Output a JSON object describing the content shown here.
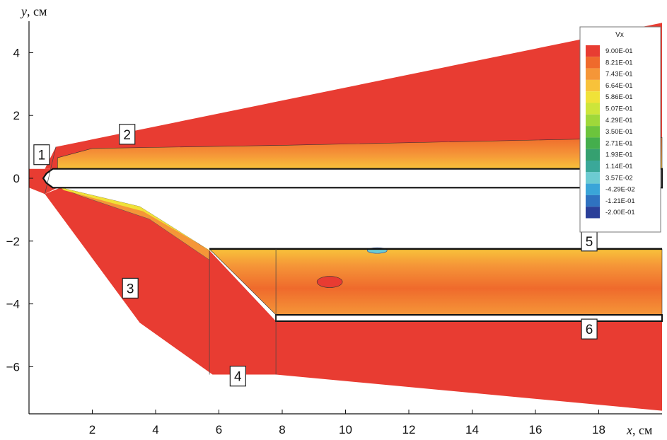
{
  "chart_data": {
    "type": "heatmap",
    "xlabel": "x, см",
    "ylabel": "y, см",
    "xlim": [
      0,
      20
    ],
    "ylim": [
      -7.5,
      5
    ],
    "xticks": [
      2,
      4,
      6,
      8,
      10,
      12,
      14,
      16,
      18
    ],
    "yticks": [
      4,
      2,
      0,
      -2,
      -4,
      -6
    ],
    "ytick_labels": [
      "4",
      "2",
      "0",
      "−2",
      "−4",
      "−6"
    ],
    "colorbar": {
      "title": "Vx",
      "levels": [
        "9.00E-01",
        "8.21E-01",
        "7.43E-01",
        "6.64E-01",
        "5.86E-01",
        "5.07E-01",
        "4.29E-01",
        "3.50E-01",
        "2.71E-01",
        "1.93E-01",
        "1.14E-01",
        "3.57E-02",
        "-4.29E-02",
        "-1.21E-01",
        "-2.00E-01"
      ],
      "colors": [
        "#e83c32",
        "#ef6a2c",
        "#f59638",
        "#f8c23a",
        "#f0e238",
        "#cde53a",
        "#9fd83a",
        "#6cc43c",
        "#44ae4c",
        "#35a070",
        "#3aa899",
        "#6ccbd2",
        "#3aa5d8",
        "#2f72c0",
        "#2a3f99"
      ]
    },
    "labels": [
      {
        "text": "1",
        "x": 0.4,
        "y": 0.75
      },
      {
        "text": "2",
        "x": 3.1,
        "y": 1.4
      },
      {
        "text": "3",
        "x": 3.2,
        "y": -3.5
      },
      {
        "text": "4",
        "x": 6.6,
        "y": -6.3
      },
      {
        "text": "5",
        "x": 17.7,
        "y": -2.0
      },
      {
        "text": "6",
        "x": 17.7,
        "y": -4.8
      }
    ],
    "regions": {
      "upper_wedge": [
        [
          0.5,
          0.3
        ],
        [
          0.85,
          1.0
        ],
        [
          20,
          4.95
        ],
        [
          20,
          0.3
        ]
      ],
      "upper_core": [
        [
          0.9,
          0.65
        ],
        [
          2,
          0.95
        ],
        [
          8,
          1.05
        ],
        [
          20,
          1.3
        ],
        [
          20,
          0.3
        ],
        [
          0.9,
          0.3
        ]
      ],
      "body_nose": [
        [
          0.75,
          0.3
        ],
        [
          0.55,
          0.15
        ],
        [
          0.45,
          0
        ],
        [
          0.55,
          -0.15
        ],
        [
          0.75,
          -0.3
        ],
        [
          20,
          -0.3
        ],
        [
          20,
          0.3
        ]
      ],
      "lower_shock": [
        [
          0.5,
          -0.5
        ],
        [
          3.5,
          -4.6
        ],
        [
          5.8,
          -6.25
        ],
        [
          7.8,
          -6.25
        ],
        [
          20,
          -7.4
        ],
        [
          20,
          -4.55
        ],
        [
          7.8,
          -4.55
        ],
        [
          5.7,
          -2.3
        ],
        [
          3.5,
          -0.9
        ],
        [
          1,
          -0.3
        ]
      ],
      "channel_upper_wall": [
        [
          5.7,
          -2.25
        ],
        [
          20,
          -2.25
        ]
      ],
      "channel_lower_wall": [
        [
          7.8,
          -4.35
        ],
        [
          20,
          -4.35
        ]
      ],
      "channel": [
        [
          5.7,
          -2.25
        ],
        [
          20,
          -2.25
        ],
        [
          20,
          -4.35
        ],
        [
          7.8,
          -4.35
        ]
      ],
      "insert": [
        [
          7.8,
          -4.35
        ],
        [
          20,
          -4.35
        ],
        [
          20,
          -4.55
        ],
        [
          7.8,
          -4.55
        ]
      ],
      "nose_cap": [
        [
          0,
          0.3
        ],
        [
          0.9,
          0.3
        ],
        [
          0.9,
          -0.3
        ],
        [
          0.5,
          -0.5
        ],
        [
          0,
          -0.3
        ]
      ]
    }
  }
}
